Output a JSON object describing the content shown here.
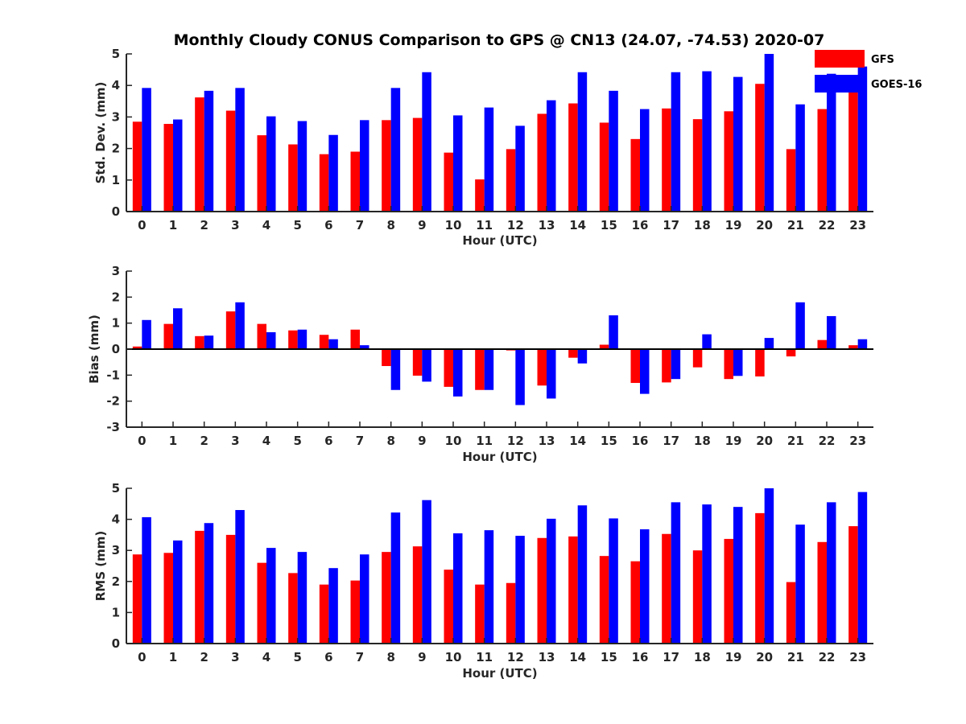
{
  "chart_data": [
    {
      "type": "bar",
      "title": "Monthly Cloudy CONUS Comparison to GPS @ CN13 (24.07, -74.53) 2020-07",
      "xlabel": "Hour (UTC)",
      "ylabel": "Std. Dev. (mm)",
      "ylim": [
        0,
        5
      ],
      "yticks": [
        "0",
        "1",
        "2",
        "3",
        "4",
        "5"
      ],
      "categories": [
        "0",
        "1",
        "2",
        "3",
        "4",
        "5",
        "6",
        "7",
        "8",
        "9",
        "10",
        "11",
        "12",
        "13",
        "14",
        "15",
        "16",
        "17",
        "18",
        "19",
        "20",
        "21",
        "22",
        "23"
      ],
      "series": [
        {
          "name": "GFS",
          "color": "#ff0000",
          "values": [
            2.85,
            2.78,
            3.62,
            3.2,
            2.42,
            2.13,
            1.82,
            1.9,
            2.9,
            2.97,
            1.87,
            1.02,
            1.98,
            3.1,
            3.43,
            2.82,
            2.3,
            3.27,
            2.93,
            3.18,
            4.05,
            1.98,
            3.25,
            3.8
          ]
        },
        {
          "name": "GOES-16",
          "color": "#0000ff",
          "values": [
            3.92,
            2.92,
            3.83,
            3.92,
            3.02,
            2.87,
            2.43,
            2.9,
            3.92,
            4.42,
            3.05,
            3.3,
            2.72,
            3.53,
            4.42,
            3.83,
            3.25,
            4.42,
            4.45,
            4.27,
            5.0,
            3.4,
            4.37,
            4.6
          ]
        }
      ],
      "legend": {
        "placement": "top-right",
        "entries": [
          "GFS",
          "GOES-16"
        ]
      },
      "grid": false
    },
    {
      "type": "bar",
      "xlabel": "Hour (UTC)",
      "ylabel": "Bias (mm)",
      "ylim": [
        -3,
        3
      ],
      "yticks": [
        "-3",
        "-2",
        "-1",
        "0",
        "1",
        "2",
        "3"
      ],
      "categories": [
        "0",
        "1",
        "2",
        "3",
        "4",
        "5",
        "6",
        "7",
        "8",
        "9",
        "10",
        "11",
        "12",
        "13",
        "14",
        "15",
        "16",
        "17",
        "18",
        "19",
        "20",
        "21",
        "22",
        "23"
      ],
      "series": [
        {
          "name": "GFS",
          "color": "#ff0000",
          "values": [
            0.1,
            0.97,
            0.5,
            1.45,
            0.97,
            0.72,
            0.55,
            0.75,
            -0.65,
            -1.02,
            -1.45,
            -1.57,
            -0.05,
            -1.4,
            -0.33,
            0.17,
            -1.3,
            -1.28,
            -0.7,
            -1.15,
            -1.05,
            -0.28,
            0.35,
            0.15
          ]
        },
        {
          "name": "GOES-16",
          "color": "#0000ff",
          "values": [
            1.12,
            1.57,
            0.52,
            1.8,
            0.65,
            0.75,
            0.38,
            0.15,
            -1.57,
            -1.25,
            -1.82,
            -1.57,
            -2.15,
            -1.9,
            -0.55,
            1.3,
            -1.72,
            -1.15,
            0.57,
            -1.03,
            0.43,
            1.8,
            1.27,
            0.38
          ]
        }
      ],
      "grid": false
    },
    {
      "type": "bar",
      "xlabel": "Hour (UTC)",
      "ylabel": "RMS (mm)",
      "ylim": [
        0,
        5
      ],
      "yticks": [
        "0",
        "1",
        "2",
        "3",
        "4",
        "5"
      ],
      "categories": [
        "0",
        "1",
        "2",
        "3",
        "4",
        "5",
        "6",
        "7",
        "8",
        "9",
        "10",
        "11",
        "12",
        "13",
        "14",
        "15",
        "16",
        "17",
        "18",
        "19",
        "20",
        "21",
        "22",
        "23"
      ],
      "series": [
        {
          "name": "GFS",
          "color": "#ff0000",
          "values": [
            2.87,
            2.92,
            3.63,
            3.5,
            2.6,
            2.27,
            1.9,
            2.03,
            2.95,
            3.13,
            2.38,
            1.9,
            1.95,
            3.4,
            3.45,
            2.82,
            2.65,
            3.53,
            3.0,
            3.37,
            4.2,
            1.98,
            3.27,
            3.78
          ]
        },
        {
          "name": "GOES-16",
          "color": "#0000ff",
          "values": [
            4.07,
            3.32,
            3.88,
            4.3,
            3.08,
            2.95,
            2.43,
            2.87,
            4.22,
            4.62,
            3.55,
            3.65,
            3.47,
            4.02,
            4.45,
            4.03,
            3.68,
            4.55,
            4.48,
            4.4,
            5.0,
            3.83,
            4.55,
            4.88
          ]
        }
      ],
      "grid": false
    }
  ]
}
